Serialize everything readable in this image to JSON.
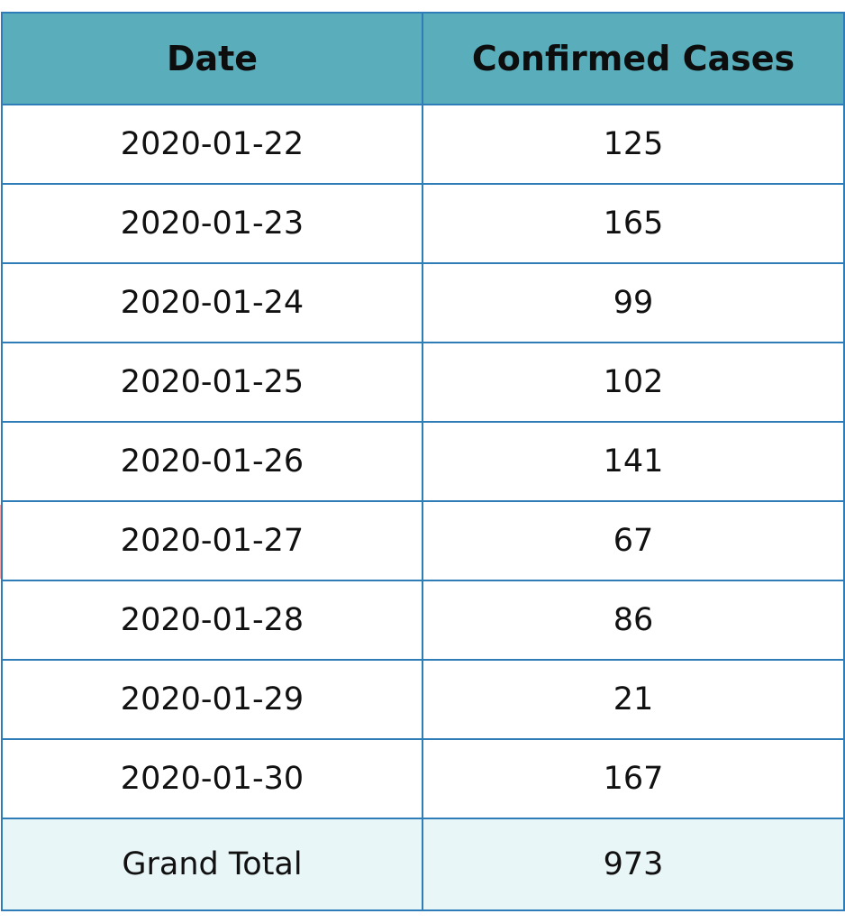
{
  "chart_data": {
    "type": "table",
    "columns": [
      "Date",
      "Confirmed Cases"
    ],
    "rows": [
      {
        "date": "2020-01-22",
        "cases": "125"
      },
      {
        "date": "2020-01-23",
        "cases": "165"
      },
      {
        "date": "2020-01-24",
        "cases": "99"
      },
      {
        "date": "2020-01-25",
        "cases": "102"
      },
      {
        "date": "2020-01-26",
        "cases": "141"
      },
      {
        "date": "2020-01-27",
        "cases": "67"
      },
      {
        "date": "2020-01-28",
        "cases": "86"
      },
      {
        "date": "2020-01-29",
        "cases": "21"
      },
      {
        "date": "2020-01-30",
        "cases": "167"
      }
    ],
    "total": {
      "label": "Grand Total",
      "value": "973"
    }
  },
  "colors": {
    "header_bg": "#5aaebc",
    "border": "#2e7cb8",
    "total_bg": "#e9f6f8"
  }
}
